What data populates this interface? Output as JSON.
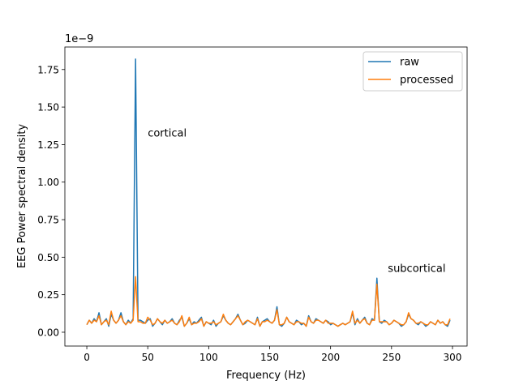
{
  "chart_data": {
    "type": "line",
    "title": "",
    "xlabel": "Frequency (Hz)",
    "ylabel": "EEG Power spectral density",
    "offset_label": "1e−9",
    "xlim": [
      -18,
      312
    ],
    "ylim": [
      -0.092,
      1.9
    ],
    "xticks": [
      0,
      50,
      100,
      150,
      200,
      250,
      300
    ],
    "xtick_labels": [
      "0",
      "50",
      "100",
      "150",
      "200",
      "250",
      "300"
    ],
    "yticks": [
      0.0,
      0.25,
      0.5,
      0.75,
      1.0,
      1.25,
      1.5,
      1.75
    ],
    "ytick_labels": [
      "0.00",
      "0.25",
      "0.50",
      "0.75",
      "1.00",
      "1.25",
      "1.50",
      "1.75"
    ],
    "grid": false,
    "legend": "top-right",
    "annotations": [
      {
        "text": "cortical",
        "x": 50,
        "y": 1.33
      },
      {
        "text": "subcortical",
        "x": 247,
        "y": 0.43
      }
    ],
    "x": [
      0,
      2,
      4,
      6,
      8,
      10,
      12,
      14,
      16,
      18,
      20,
      22,
      24,
      26,
      28,
      30,
      32,
      34,
      36,
      38,
      40,
      42,
      44,
      46,
      48,
      50,
      52,
      54,
      56,
      58,
      60,
      62,
      64,
      66,
      68,
      70,
      72,
      74,
      76,
      78,
      80,
      82,
      84,
      86,
      88,
      90,
      92,
      94,
      96,
      98,
      100,
      102,
      104,
      106,
      108,
      110,
      112,
      114,
      116,
      118,
      120,
      122,
      124,
      126,
      128,
      130,
      132,
      134,
      136,
      138,
      140,
      142,
      144,
      146,
      148,
      150,
      152,
      154,
      156,
      158,
      160,
      162,
      164,
      166,
      168,
      170,
      172,
      174,
      176,
      178,
      180,
      182,
      184,
      186,
      188,
      190,
      192,
      194,
      196,
      198,
      200,
      202,
      204,
      206,
      208,
      210,
      212,
      214,
      216,
      218,
      220,
      222,
      224,
      226,
      228,
      230,
      232,
      234,
      236,
      238,
      240,
      242,
      244,
      246,
      248,
      250,
      252,
      254,
      256,
      258,
      260,
      262,
      264,
      266,
      268,
      270,
      272,
      274,
      276,
      278,
      280,
      282,
      284,
      286,
      288,
      290,
      292,
      294,
      296,
      298
    ],
    "series": [
      {
        "name": "raw",
        "color": "#1f77b4",
        "values": [
          0.05,
          0.08,
          0.06,
          0.09,
          0.07,
          0.13,
          0.05,
          0.07,
          0.09,
          0.04,
          0.12,
          0.08,
          0.06,
          0.08,
          0.13,
          0.07,
          0.05,
          0.08,
          0.06,
          0.09,
          1.82,
          0.08,
          0.08,
          0.07,
          0.06,
          0.08,
          0.09,
          0.04,
          0.06,
          0.09,
          0.07,
          0.05,
          0.08,
          0.06,
          0.07,
          0.09,
          0.06,
          0.05,
          0.08,
          0.1,
          0.04,
          0.06,
          0.09,
          0.05,
          0.07,
          0.06,
          0.08,
          0.1,
          0.04,
          0.07,
          0.06,
          0.05,
          0.08,
          0.04,
          0.06,
          0.07,
          0.11,
          0.08,
          0.06,
          0.05,
          0.07,
          0.09,
          0.12,
          0.08,
          0.05,
          0.06,
          0.08,
          0.07,
          0.06,
          0.05,
          0.1,
          0.04,
          0.07,
          0.08,
          0.09,
          0.07,
          0.06,
          0.08,
          0.17,
          0.05,
          0.04,
          0.06,
          0.1,
          0.07,
          0.06,
          0.05,
          0.08,
          0.07,
          0.05,
          0.06,
          0.04,
          0.11,
          0.07,
          0.06,
          0.09,
          0.08,
          0.07,
          0.06,
          0.08,
          0.07,
          0.05,
          0.06,
          0.05,
          0.04,
          0.05,
          0.06,
          0.05,
          0.06,
          0.07,
          0.13,
          0.05,
          0.09,
          0.06,
          0.08,
          0.1,
          0.06,
          0.05,
          0.09,
          0.08,
          0.36,
          0.07,
          0.06,
          0.08,
          0.07,
          0.05,
          0.06,
          0.08,
          0.07,
          0.06,
          0.04,
          0.05,
          0.07,
          0.12,
          0.09,
          0.08,
          0.06,
          0.05,
          0.07,
          0.06,
          0.04,
          0.05,
          0.07,
          0.06,
          0.05,
          0.08,
          0.06,
          0.07,
          0.05,
          0.04,
          0.08
        ]
      },
      {
        "name": "processed",
        "color": "#ff7f0e",
        "values": [
          0.05,
          0.08,
          0.06,
          0.08,
          0.07,
          0.11,
          0.05,
          0.07,
          0.08,
          0.05,
          0.14,
          0.08,
          0.06,
          0.08,
          0.11,
          0.07,
          0.05,
          0.07,
          0.06,
          0.08,
          0.37,
          0.07,
          0.07,
          0.06,
          0.06,
          0.1,
          0.08,
          0.05,
          0.06,
          0.09,
          0.07,
          0.06,
          0.08,
          0.06,
          0.07,
          0.08,
          0.06,
          0.05,
          0.07,
          0.11,
          0.04,
          0.06,
          0.1,
          0.05,
          0.06,
          0.06,
          0.07,
          0.09,
          0.04,
          0.07,
          0.06,
          0.06,
          0.07,
          0.05,
          0.06,
          0.07,
          0.12,
          0.08,
          0.06,
          0.05,
          0.07,
          0.09,
          0.11,
          0.08,
          0.05,
          0.07,
          0.08,
          0.07,
          0.06,
          0.05,
          0.09,
          0.04,
          0.07,
          0.07,
          0.08,
          0.07,
          0.06,
          0.08,
          0.15,
          0.05,
          0.05,
          0.06,
          0.1,
          0.07,
          0.06,
          0.05,
          0.07,
          0.07,
          0.06,
          0.06,
          0.04,
          0.1,
          0.07,
          0.06,
          0.08,
          0.08,
          0.07,
          0.06,
          0.08,
          0.06,
          0.06,
          0.06,
          0.05,
          0.04,
          0.05,
          0.06,
          0.05,
          0.06,
          0.07,
          0.14,
          0.06,
          0.08,
          0.06,
          0.08,
          0.09,
          0.06,
          0.05,
          0.08,
          0.08,
          0.32,
          0.07,
          0.07,
          0.07,
          0.07,
          0.05,
          0.06,
          0.08,
          0.07,
          0.06,
          0.05,
          0.05,
          0.07,
          0.13,
          0.09,
          0.08,
          0.06,
          0.06,
          0.07,
          0.06,
          0.05,
          0.05,
          0.07,
          0.06,
          0.05,
          0.08,
          0.06,
          0.07,
          0.05,
          0.05,
          0.09
        ]
      }
    ]
  }
}
